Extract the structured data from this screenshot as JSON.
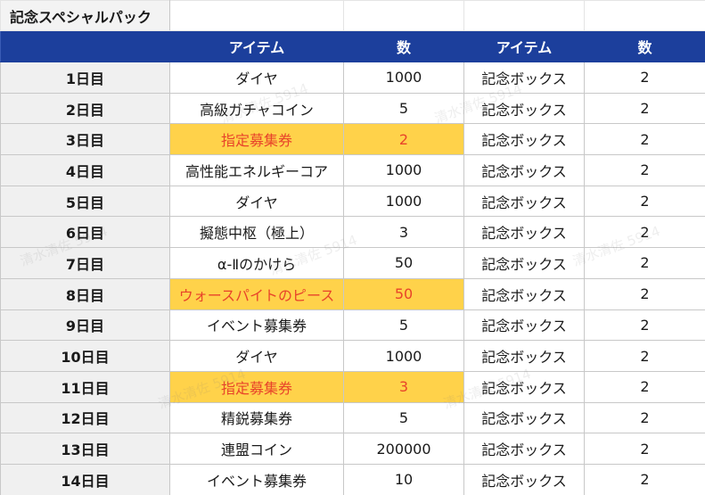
{
  "title": "記念スペシャルパック",
  "columns": [
    "",
    "アイテム",
    "数",
    "アイテム",
    "数"
  ],
  "rows": [
    {
      "day": "1日目",
      "item1": "ダイヤ",
      "qty1": "1000",
      "item2": "記念ボックス",
      "qty2": "2",
      "highlight": false
    },
    {
      "day": "2日目",
      "item1": "高級ガチャコイン",
      "qty1": "5",
      "item2": "記念ボックス",
      "qty2": "2",
      "highlight": false
    },
    {
      "day": "3日目",
      "item1": "指定募集券",
      "qty1": "2",
      "item2": "記念ボックス",
      "qty2": "2",
      "highlight": true
    },
    {
      "day": "4日目",
      "item1": "高性能エネルギーコア",
      "qty1": "1000",
      "item2": "記念ボックス",
      "qty2": "2",
      "highlight": false
    },
    {
      "day": "5日目",
      "item1": "ダイヤ",
      "qty1": "1000",
      "item2": "記念ボックス",
      "qty2": "2",
      "highlight": false
    },
    {
      "day": "6日目",
      "item1": "擬態中枢（極上）",
      "qty1": "3",
      "item2": "記念ボックス",
      "qty2": "2",
      "highlight": false
    },
    {
      "day": "7日目",
      "item1": "α-Ⅱのかけら",
      "qty1": "50",
      "item2": "記念ボックス",
      "qty2": "2",
      "highlight": false
    },
    {
      "day": "8日目",
      "item1": "ウォースパイトのピース",
      "qty1": "50",
      "item2": "記念ボックス",
      "qty2": "2",
      "highlight": true
    },
    {
      "day": "9日目",
      "item1": "イベント募集券",
      "qty1": "5",
      "item2": "記念ボックス",
      "qty2": "2",
      "highlight": false
    },
    {
      "day": "10日目",
      "item1": "ダイヤ",
      "qty1": "1000",
      "item2": "記念ボックス",
      "qty2": "2",
      "highlight": false
    },
    {
      "day": "11日目",
      "item1": "指定募集券",
      "qty1": "3",
      "item2": "記念ボックス",
      "qty2": "2",
      "highlight": true
    },
    {
      "day": "12日目",
      "item1": "精鋭募集券",
      "qty1": "5",
      "item2": "記念ボックス",
      "qty2": "2",
      "highlight": false
    },
    {
      "day": "13日目",
      "item1": "連盟コイン",
      "qty1": "200000",
      "item2": "記念ボックス",
      "qty2": "2",
      "highlight": false
    },
    {
      "day": "14日目",
      "item1": "イベント募集券",
      "qty1": "10",
      "item2": "記念ボックス",
      "qty2": "2",
      "highlight": false
    }
  ],
  "colors": {
    "header_bg": "#1c3f9c",
    "highlight_bg": "#ffd24a",
    "highlight_text": "#e8442a"
  },
  "watermark": "清水清佐 5914"
}
